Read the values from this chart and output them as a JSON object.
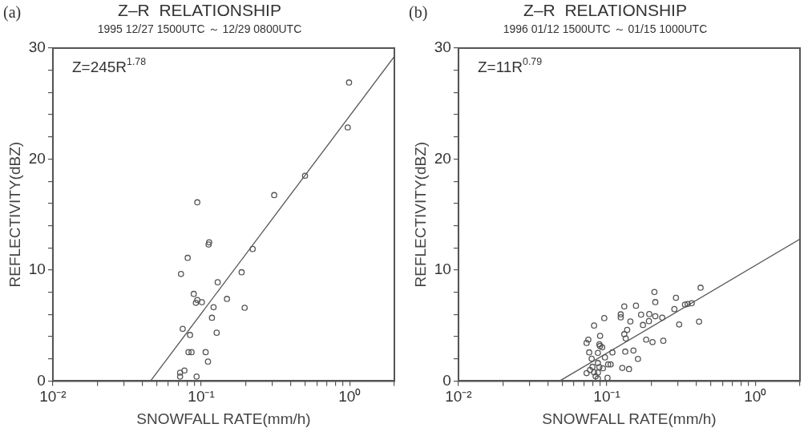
{
  "chart_data": [
    {
      "type": "scatter",
      "title": "Z–R  RELATIONSHIP",
      "subtitle": "1995 12/27 1500UTC ～ 12/29 0800UTC",
      "xlabel": "SNOWFALL RATE(mm/h)",
      "ylabel": "REFLECTIVITY(dBZ)",
      "annotations": [
        "(a)",
        "Z=245R$^{1.78}$"
      ],
      "log": "x",
      "grid": false,
      "legend": false,
      "xlim": [
        0.01,
        2
      ],
      "ylim": [
        0,
        30
      ],
      "xticks": [
        {
          "value": 0.01,
          "label": "10⁻²"
        },
        {
          "value": 0.02,
          "label": null
        },
        {
          "value": 0.03,
          "label": null
        },
        {
          "value": 0.04,
          "label": null
        },
        {
          "value": 0.05,
          "label": null
        },
        {
          "value": 0.06,
          "label": null
        },
        {
          "value": 0.07,
          "label": null
        },
        {
          "value": 0.08,
          "label": null
        },
        {
          "value": 0.09,
          "label": null
        },
        {
          "value": 0.1,
          "label": "10⁻¹"
        },
        {
          "value": 0.2,
          "label": null
        },
        {
          "value": 0.3,
          "label": null
        },
        {
          "value": 0.4,
          "label": null
        },
        {
          "value": 0.5,
          "label": null
        },
        {
          "value": 0.6,
          "label": null
        },
        {
          "value": 0.7,
          "label": null
        },
        {
          "value": 0.8,
          "label": null
        },
        {
          "value": 0.9,
          "label": null
        },
        {
          "value": 1,
          "label": "10⁰"
        },
        {
          "value": 2,
          "label": null
        }
      ],
      "yticks": [
        0,
        {
          "value": 2,
          "label": null
        },
        {
          "value": 4,
          "label": null
        },
        {
          "value": 6,
          "label": null
        },
        {
          "value": 8,
          "label": null
        },
        10,
        {
          "value": 12,
          "label": null
        },
        {
          "value": 14,
          "label": null
        },
        {
          "value": 16,
          "label": null
        },
        {
          "value": 18,
          "label": null
        },
        20,
        {
          "value": 22,
          "label": null
        },
        {
          "value": 24,
          "label": null
        },
        {
          "value": 26,
          "label": null
        },
        {
          "value": 28,
          "label": null
        },
        30
      ],
      "series": [
        {
          "type": "scatter",
          "marker": "circle",
          "color": "#555555",
          "x": [
            0.99,
            0.97,
            0.5,
            0.31,
            0.094,
            0.112,
            0.113,
            0.222,
            0.081,
            0.073,
            0.187,
            0.129,
            0.089,
            0.149,
            0.094,
            0.092,
            0.101,
            0.121,
            0.196,
            0.118,
            0.075,
            0.084,
            0.127,
            0.082,
            0.086,
            0.107,
            0.111,
            0.077,
            0.072,
            0.072,
            0.093
          ],
          "values": [
            26.9,
            22.85,
            18.5,
            16.75,
            16.1,
            12.3,
            12.5,
            11.9,
            11.1,
            9.65,
            9.8,
            8.9,
            7.85,
            7.4,
            7.3,
            7.05,
            7.1,
            6.65,
            6.6,
            5.7,
            4.7,
            4.15,
            4.35,
            2.6,
            2.6,
            2.6,
            1.75,
            0.95,
            0.75,
            0.4,
            0.4
          ]
        },
        {
          "type": "line",
          "marker": "none",
          "color": "#555555",
          "x": [
            0.0455,
            2
          ],
          "values": [
            0,
            29.25
          ]
        }
      ]
    },
    {
      "type": "scatter",
      "title": "Z–R  RELATIONSHIP",
      "subtitle": "1996 01/12 1500UTC ～ 01/15 1000UTC",
      "xlabel": "SNOWFALL RATE(mm/h)",
      "ylabel": "REFLECTIVITY(dBZ)",
      "annotations": [
        "(b)",
        "Z=11R$^{0.79}$"
      ],
      "log": "x",
      "grid": false,
      "legend": false,
      "xlim": [
        0.01,
        2
      ],
      "ylim": [
        0,
        30
      ],
      "xticks": [
        {
          "value": 0.01,
          "label": "10⁻²"
        },
        {
          "value": 0.02,
          "label": null
        },
        {
          "value": 0.03,
          "label": null
        },
        {
          "value": 0.04,
          "label": null
        },
        {
          "value": 0.05,
          "label": null
        },
        {
          "value": 0.06,
          "label": null
        },
        {
          "value": 0.07,
          "label": null
        },
        {
          "value": 0.08,
          "label": null
        },
        {
          "value": 0.09,
          "label": null
        },
        {
          "value": 0.1,
          "label": "10⁻¹"
        },
        {
          "value": 0.2,
          "label": null
        },
        {
          "value": 0.3,
          "label": null
        },
        {
          "value": 0.4,
          "label": null
        },
        {
          "value": 0.5,
          "label": null
        },
        {
          "value": 0.6,
          "label": null
        },
        {
          "value": 0.7,
          "label": null
        },
        {
          "value": 0.8,
          "label": null
        },
        {
          "value": 0.9,
          "label": null
        },
        {
          "value": 1,
          "label": "10⁰"
        },
        {
          "value": 2,
          "label": null
        }
      ],
      "yticks": [
        0,
        {
          "value": 2,
          "label": null
        },
        {
          "value": 4,
          "label": null
        },
        {
          "value": 6,
          "label": null
        },
        {
          "value": 8,
          "label": null
        },
        10,
        {
          "value": 12,
          "label": null
        },
        {
          "value": 14,
          "label": null
        },
        {
          "value": 16,
          "label": null
        },
        {
          "value": 18,
          "label": null
        },
        20,
        {
          "value": 22,
          "label": null
        },
        {
          "value": 24,
          "label": null
        },
        {
          "value": 26,
          "label": null
        },
        {
          "value": 28,
          "label": null
        },
        30
      ],
      "series": [
        {
          "type": "scatter",
          "marker": "circle",
          "color": "#555555",
          "x": [
            0.209,
            0.428,
            0.292,
            0.212,
            0.131,
            0.157,
            0.336,
            0.35,
            0.373,
            0.285,
            0.124,
            0.124,
            0.17,
            0.193,
            0.212,
            0.236,
            0.096,
            0.082,
            0.144,
            0.175,
            0.192,
            0.307,
            0.418,
            0.137,
            0.131,
            0.134,
            0.09,
            0.184,
            0.203,
            0.24,
            0.075,
            0.073,
            0.089,
            0.093,
            0.09,
            0.076,
            0.087,
            0.109,
            0.133,
            0.151,
            0.079,
            0.097,
            0.162,
            0.087,
            0.08,
            0.089,
            0.102,
            0.106,
            0.127,
            0.141,
            0.077,
            0.073,
            0.082,
            0.087,
            0.084,
            0.087,
            0.101,
            0.094
          ],
          "values": [
            8.02,
            8.41,
            7.5,
            7.11,
            6.72,
            6.79,
            6.89,
            6.94,
            7.01,
            6.48,
            6.01,
            5.74,
            5.98,
            6.03,
            5.84,
            5.71,
            5.67,
            5.0,
            5.37,
            5.05,
            5.4,
            5.1,
            5.35,
            4.61,
            4.22,
            3.83,
            4.07,
            3.73,
            3.51,
            3.63,
            3.73,
            3.43,
            3.31,
            3.04,
            3.16,
            2.58,
            2.53,
            2.58,
            2.65,
            2.75,
            2.01,
            2.13,
            1.99,
            1.62,
            1.28,
            1.25,
            1.5,
            1.5,
            1.18,
            1.08,
            1.0,
            0.71,
            0.78,
            0.76,
            0.42,
            0.22,
            0.29,
            1.15
          ]
        },
        {
          "type": "line",
          "marker": "none",
          "color": "#555555",
          "x": [
            0.048,
            2
          ],
          "values": [
            0,
            12.79
          ]
        }
      ]
    }
  ]
}
